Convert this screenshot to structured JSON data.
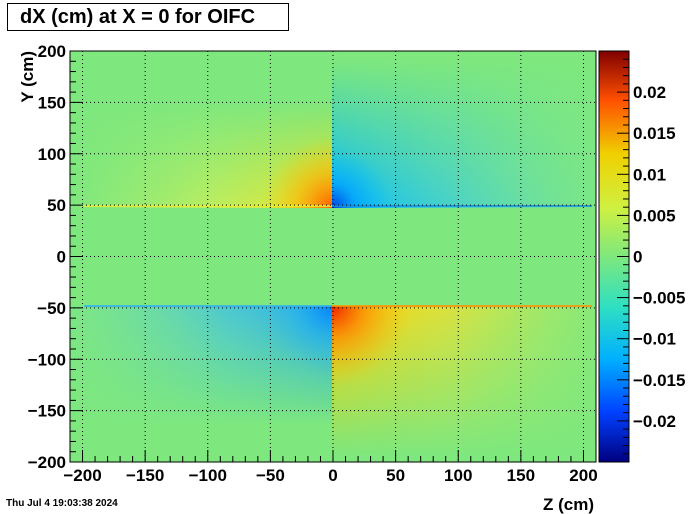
{
  "chart_data": {
    "type": "heatmap",
    "title": "dX (cm) at X = 0 for OIFC",
    "xlabel": "Z (cm)",
    "ylabel": "Y (cm)",
    "xlim": [
      -210,
      210
    ],
    "ylim": [
      -200,
      200
    ],
    "x_ticks": [
      -200,
      -150,
      -100,
      -50,
      0,
      50,
      100,
      150,
      200
    ],
    "x_tick_labels": [
      "−200",
      "−150",
      "−100",
      "−50",
      "0",
      "50",
      "100",
      "150",
      "200"
    ],
    "y_ticks": [
      -200,
      -150,
      -100,
      -50,
      0,
      50,
      100,
      150,
      200
    ],
    "y_tick_labels": [
      "−200",
      "−150",
      "−100",
      "−50",
      "0",
      "50",
      "100",
      "150",
      "200"
    ],
    "grid": true,
    "colorbar": {
      "min": -0.025,
      "max": 0.025,
      "ticks": [
        0.02,
        0.015,
        0.01,
        0.005,
        0,
        -0.005,
        -0.01,
        -0.015,
        -0.02
      ],
      "tick_labels": [
        "0.02",
        "0.015",
        "0.01",
        "0.005",
        "0",
        "−0.005",
        "−0.01",
        "−0.015",
        "−0.02"
      ]
    },
    "features": [
      {
        "region": "y≈+50, z<0",
        "peak_value": 0.022
      },
      {
        "region": "y≈+50, z>0",
        "peak_value": -0.022
      },
      {
        "region": "y≈-50, z<0",
        "peak_value": -0.01
      },
      {
        "region": "y≈-50, z>0",
        "peak_value": 0.017
      }
    ]
  },
  "footer": {
    "datestamp": "Thu Jul  4 19:03:38 2024"
  }
}
